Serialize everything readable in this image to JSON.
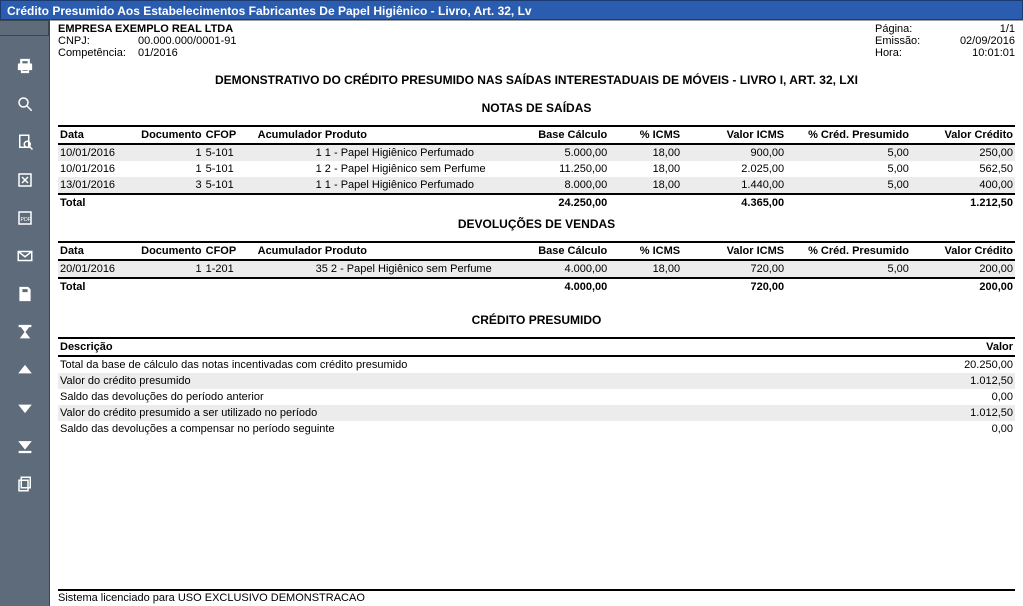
{
  "window": {
    "title": "Crédito Presumido Aos Estabelecimentos Fabricantes De Papel Higiênico - Livro, Art. 32, Lv"
  },
  "header": {
    "company": "EMPRESA EXEMPLO REAL LTDA",
    "cnpj_label": "CNPJ:",
    "cnpj": "00.000.000/0001-91",
    "comp_label": "Competência:",
    "comp": "01/2016",
    "page_label": "Página:",
    "page": "1/1",
    "emiss_label": "Emissão:",
    "emiss": "02/09/2016",
    "hora_label": "Hora:",
    "hora": "10:01:01"
  },
  "titles": {
    "main": "DEMONSTRATIVO DO CRÉDITO PRESUMIDO NAS SAÍDAS INTERESTADUAIS DE MÓVEIS - LIVRO I, ART. 32, LXI",
    "saidas": "NOTAS DE SAÍDAS",
    "devolucoes": "DEVOLUÇÕES DE VENDAS",
    "credito": "CRÉDITO PRESUMIDO"
  },
  "cols": {
    "data": "Data",
    "doc": "Documento",
    "cfop": "CFOP",
    "acum": "Acumulador Produto",
    "base": "Base Cálculo",
    "icms": "% ICMS",
    "vicms": "Valor ICMS",
    "cred": "% Créd. Presumido",
    "vcred": "Valor Crédito",
    "desc": "Descrição",
    "valor": "Valor"
  },
  "saidas": {
    "rows": [
      {
        "data": "10/01/2016",
        "doc": "1",
        "cfop": "5-101",
        "acum": "1 1 - Papel Higiênico Perfumado",
        "base": "5.000,00",
        "icms": "18,00",
        "vicms": "900,00",
        "cred": "5,00",
        "vcred": "250,00"
      },
      {
        "data": "10/01/2016",
        "doc": "1",
        "cfop": "5-101",
        "acum": "1 2 - Papel Higiênico sem Perfume",
        "base": "11.250,00",
        "icms": "18,00",
        "vicms": "2.025,00",
        "cred": "5,00",
        "vcred": "562,50"
      },
      {
        "data": "13/01/2016",
        "doc": "3",
        "cfop": "5-101",
        "acum": "1 1 - Papel Higiênico Perfumado",
        "base": "8.000,00",
        "icms": "18,00",
        "vicms": "1.440,00",
        "cred": "5,00",
        "vcred": "400,00"
      }
    ],
    "total_label": "Total",
    "total": {
      "base": "24.250,00",
      "vicms": "4.365,00",
      "vcred": "1.212,50"
    }
  },
  "devol": {
    "rows": [
      {
        "data": "20/01/2016",
        "doc": "1",
        "cfop": "1-201",
        "acum": "35 2 - Papel Higiênico sem Perfume",
        "base": "4.000,00",
        "icms": "18,00",
        "vicms": "720,00",
        "cred": "5,00",
        "vcred": "200,00"
      }
    ],
    "total_label": "Total",
    "total": {
      "base": "4.000,00",
      "vicms": "720,00",
      "vcred": "200,00"
    }
  },
  "credito": {
    "rows": [
      {
        "desc": "Total da base de cálculo das notas incentivadas com crédito presumido",
        "val": "20.250,00"
      },
      {
        "desc": "Valor do crédito presumido",
        "val": "1.012,50"
      },
      {
        "desc": "Saldo das devoluções do período anterior",
        "val": "0,00"
      },
      {
        "desc": "Valor do crédito presumido a ser utilizado no período",
        "val": "1.012,50"
      },
      {
        "desc": "Saldo das devoluções a compensar no período seguinte",
        "val": "0,00"
      }
    ]
  },
  "footer": "Sistema licenciado para USO EXCLUSIVO DEMONSTRACAO"
}
